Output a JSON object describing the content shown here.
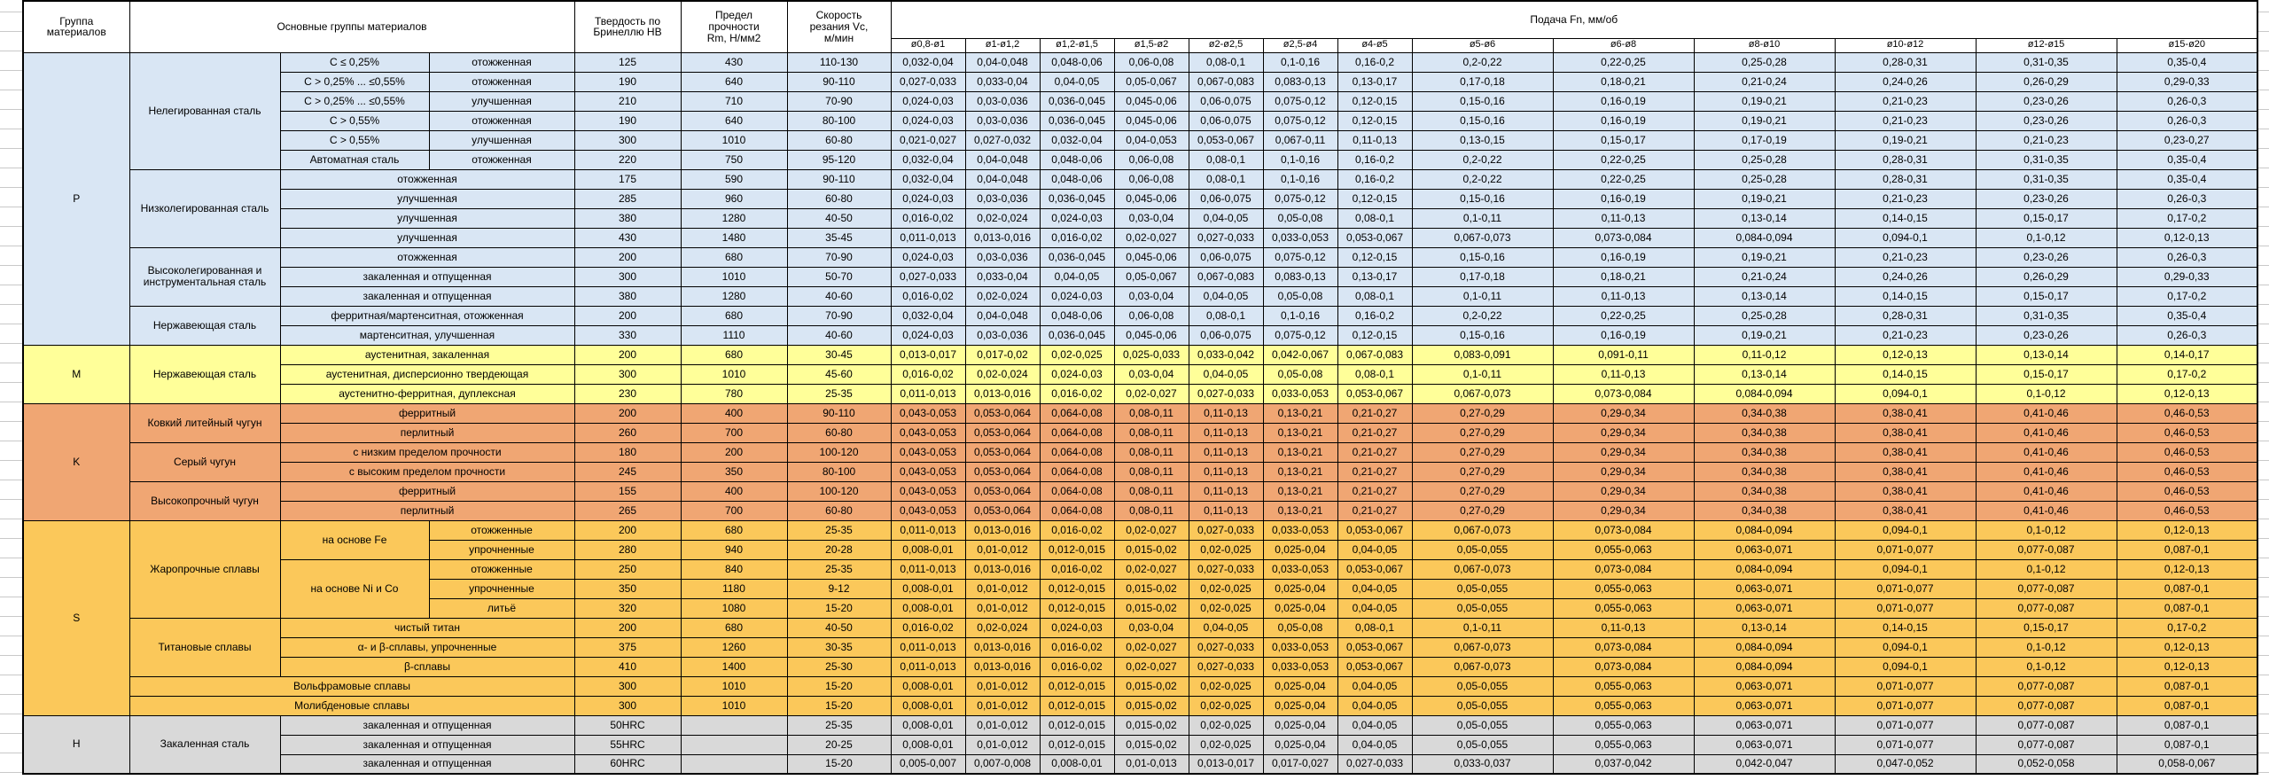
{
  "header": {
    "group": "Группа\nматериалов",
    "main_groups": "Основные группы материалов",
    "hardness": "Твердость по\nБринеллю HB",
    "strength": "Предел\nпрочности\nRm, Н/мм2",
    "speed": "Скорость\nрезания Vc,\nм/мин",
    "feed_title": "Подача Fn, мм/об",
    "feed_title_color": "#2e74b5",
    "feed_columns": [
      "ø0,8-ø1",
      "ø1-ø1,2",
      "ø1,2-ø1,5",
      "ø1,5-ø2",
      "ø2-ø2,5",
      "ø2,5-ø4",
      "ø4-ø5",
      "ø5-ø6",
      "ø6-ø8",
      "ø8-ø10",
      "ø10-ø12",
      "ø12-ø15",
      "ø15-ø20"
    ]
  },
  "feed_patterns": {
    "A": [
      "0,032-0,04",
      "0,04-0,048",
      "0,048-0,06",
      "0,06-0,08",
      "0,08-0,1",
      "0,1-0,16",
      "0,16-0,2",
      "0,2-0,22",
      "0,22-0,25",
      "0,25-0,28",
      "0,28-0,31",
      "0,31-0,35",
      "0,35-0,4"
    ],
    "B": [
      "0,027-0,033",
      "0,033-0,04",
      "0,04-0,05",
      "0,05-0,067",
      "0,067-0,083",
      "0,083-0,13",
      "0,13-0,17",
      "0,17-0,18",
      "0,18-0,21",
      "0,21-0,24",
      "0,24-0,26",
      "0,26-0,29",
      "0,29-0,33"
    ],
    "C": [
      "0,024-0,03",
      "0,03-0,036",
      "0,036-0,045",
      "0,045-0,06",
      "0,06-0,075",
      "0,075-0,12",
      "0,12-0,15",
      "0,15-0,16",
      "0,16-0,19",
      "0,19-0,21",
      "0,21-0,23",
      "0,23-0,26",
      "0,26-0,3"
    ],
    "D": [
      "0,021-0,027",
      "0,027-0,032",
      "0,032-0,04",
      "0,04-0,053",
      "0,053-0,067",
      "0,067-0,11",
      "0,11-0,13",
      "0,13-0,15",
      "0,15-0,17",
      "0,17-0,19",
      "0,19-0,21",
      "0,21-0,23",
      "0,23-0,27"
    ],
    "E": [
      "0,016-0,02",
      "0,02-0,024",
      "0,024-0,03",
      "0,03-0,04",
      "0,04-0,05",
      "0,05-0,08",
      "0,08-0,1",
      "0,1-0,11",
      "0,11-0,13",
      "0,13-0,14",
      "0,14-0,15",
      "0,15-0,17",
      "0,17-0,2"
    ],
    "F": [
      "0,011-0,013",
      "0,013-0,016",
      "0,016-0,02",
      "0,02-0,027",
      "0,027-0,033",
      "0,033-0,053",
      "0,053-0,067",
      "0,067-0,073",
      "0,073-0,084",
      "0,084-0,094",
      "0,094-0,1",
      "0,1-0,12",
      "0,12-0,13"
    ],
    "G": [
      "0,013-0,017",
      "0,017-0,02",
      "0,02-0,025",
      "0,025-0,033",
      "0,033-0,042",
      "0,042-0,067",
      "0,067-0,083",
      "0,083-0,091",
      "0,091-0,11",
      "0,11-0,12",
      "0,12-0,13",
      "0,13-0,14",
      "0,14-0,17"
    ],
    "H": [
      "0,043-0,053",
      "0,053-0,064",
      "0,064-0,08",
      "0,08-0,11",
      "0,11-0,13",
      "0,13-0,21",
      "0,21-0,27",
      "0,27-0,29",
      "0,29-0,34",
      "0,34-0,38",
      "0,38-0,41",
      "0,41-0,46",
      "0,46-0,53"
    ],
    "I": [
      "0,008-0,01",
      "0,01-0,012",
      "0,012-0,015",
      "0,015-0,02",
      "0,02-0,025",
      "0,025-0,04",
      "0,04-0,05",
      "0,05-0,055",
      "0,055-0,063",
      "0,063-0,071",
      "0,071-0,077",
      "0,077-0,087",
      "0,087-0,1"
    ],
    "J": [
      "0,005-0,007",
      "0,007-0,008",
      "0,008-0,01",
      "0,01-0,013",
      "0,013-0,017",
      "0,017-0,027",
      "0,027-0,033",
      "0,033-0,037",
      "0,037-0,042",
      "0,042-0,047",
      "0,047-0,052",
      "0,052-0,058",
      "0,058-0,067"
    ]
  },
  "sections": [
    {
      "group": "P",
      "color": "#d9e6f4",
      "families": [
        {
          "name": "Нелегированная сталь",
          "rows": [
            {
              "c": [
                {
                  "t": "C ≤ 0,25%"
                },
                {
                  "t": "отожженная"
                }
              ],
              "hb": "125",
              "rm": "430",
              "vc": "110-130",
              "fp": "A"
            },
            {
              "c": [
                {
                  "t": "C > 0,25% ... ≤0,55%"
                },
                {
                  "t": "отожженная"
                }
              ],
              "hb": "190",
              "rm": "640",
              "vc": "90-110",
              "fp": "B"
            },
            {
              "c": [
                {
                  "t": "C > 0,25% ... ≤0,55%"
                },
                {
                  "t": "улучшенная"
                }
              ],
              "hb": "210",
              "rm": "710",
              "vc": "70-90",
              "fp": "C"
            },
            {
              "c": [
                {
                  "t": "C > 0,55%"
                },
                {
                  "t": "отожженная"
                }
              ],
              "hb": "190",
              "rm": "640",
              "vc": "80-100",
              "fp": "C"
            },
            {
              "c": [
                {
                  "t": "C > 0,55%"
                },
                {
                  "t": "улучшенная"
                }
              ],
              "hb": "300",
              "rm": "1010",
              "vc": "60-80",
              "fp": "D"
            },
            {
              "c": [
                {
                  "t": "Автоматная сталь"
                },
                {
                  "t": "отожженная"
                }
              ],
              "hb": "220",
              "rm": "750",
              "vc": "95-120",
              "fp": "A"
            }
          ]
        },
        {
          "name": "Низколегированная сталь",
          "rows": [
            {
              "c": [
                {
                  "t": "отожженная",
                  "cs": 2
                }
              ],
              "hb": "175",
              "rm": "590",
              "vc": "90-110",
              "fp": "A"
            },
            {
              "c": [
                {
                  "t": "улучшенная",
                  "cs": 2
                }
              ],
              "hb": "285",
              "rm": "960",
              "vc": "60-80",
              "fp": "C"
            },
            {
              "c": [
                {
                  "t": "улучшенная",
                  "cs": 2
                }
              ],
              "hb": "380",
              "rm": "1280",
              "vc": "40-50",
              "fp": "E"
            },
            {
              "c": [
                {
                  "t": "улучшенная",
                  "cs": 2
                }
              ],
              "hb": "430",
              "rm": "1480",
              "vc": "35-45",
              "fp": "F"
            }
          ]
        },
        {
          "name": "Высоколегированная и инструментальная сталь",
          "rows": [
            {
              "c": [
                {
                  "t": "отожженная",
                  "cs": 2
                }
              ],
              "hb": "200",
              "rm": "680",
              "vc": "70-90",
              "fp": "C"
            },
            {
              "c": [
                {
                  "t": "закаленная и отпущенная",
                  "cs": 2
                }
              ],
              "hb": "300",
              "rm": "1010",
              "vc": "50-70",
              "fp": "B"
            },
            {
              "c": [
                {
                  "t": "закаленная и отпущенная",
                  "cs": 2
                }
              ],
              "hb": "380",
              "rm": "1280",
              "vc": "40-60",
              "fp": "E"
            }
          ]
        },
        {
          "name": "Нержавеющая сталь",
          "rows": [
            {
              "c": [
                {
                  "t": "ферритная/мартенситная, отожженная",
                  "cs": 2
                }
              ],
              "hb": "200",
              "rm": "680",
              "vc": "70-90",
              "fp": "A"
            },
            {
              "c": [
                {
                  "t": "мартенситная, улучшенная",
                  "cs": 2
                }
              ],
              "hb": "330",
              "rm": "1110",
              "vc": "40-60",
              "fp": "C"
            }
          ]
        }
      ]
    },
    {
      "group": "M",
      "color": "#ffff99",
      "families": [
        {
          "name": "Нержавеющая сталь",
          "rows": [
            {
              "c": [
                {
                  "t": "аустенитная, закаленная",
                  "cs": 2
                }
              ],
              "hb": "200",
              "rm": "680",
              "vc": "30-45",
              "fp": "G"
            },
            {
              "c": [
                {
                  "t": "аустенитная, дисперсионно твердеющая",
                  "cs": 2
                }
              ],
              "hb": "300",
              "rm": "1010",
              "vc": "45-60",
              "fp": "E"
            },
            {
              "c": [
                {
                  "t": "аустенитно-ферритная, дуплексная",
                  "cs": 2
                }
              ],
              "hb": "230",
              "rm": "780",
              "vc": "25-35",
              "fp": "F"
            }
          ]
        }
      ]
    },
    {
      "group": "K",
      "color": "#f0a673",
      "families": [
        {
          "name": "Ковкий литейный чугун",
          "rows": [
            {
              "c": [
                {
                  "t": "ферритный",
                  "cs": 2
                }
              ],
              "hb": "200",
              "rm": "400",
              "vc": "90-110",
              "fp": "H"
            },
            {
              "c": [
                {
                  "t": "перлитный",
                  "cs": 2
                }
              ],
              "hb": "260",
              "rm": "700",
              "vc": "60-80",
              "fp": "H"
            }
          ]
        },
        {
          "name": "Серый чугун",
          "rows": [
            {
              "c": [
                {
                  "t": "с низким пределом прочности",
                  "cs": 2
                }
              ],
              "hb": "180",
              "rm": "200",
              "vc": "100-120",
              "fp": "H"
            },
            {
              "c": [
                {
                  "t": "с высоким пределом прочности",
                  "cs": 2
                }
              ],
              "hb": "245",
              "rm": "350",
              "vc": "80-100",
              "fp": "H"
            }
          ]
        },
        {
          "name": "Высокопрочный чугун",
          "rows": [
            {
              "c": [
                {
                  "t": "ферритный",
                  "cs": 2
                }
              ],
              "hb": "155",
              "rm": "400",
              "vc": "100-120",
              "fp": "H"
            },
            {
              "c": [
                {
                  "t": "перлитный",
                  "cs": 2
                }
              ],
              "hb": "265",
              "rm": "700",
              "vc": "60-80",
              "fp": "H"
            }
          ]
        }
      ]
    },
    {
      "group": "S",
      "color": "#fbc85a",
      "families": [
        {
          "name": "Жаропрочные сплавы",
          "rows": [
            {
              "c": [
                {
                  "t": "на основе Fe",
                  "rs": 2
                },
                {
                  "t": "отожженные"
                }
              ],
              "hb": "200",
              "rm": "680",
              "vc": "25-35",
              "fp": "F"
            },
            {
              "c": [
                {
                  "t": "упрочненные"
                }
              ],
              "hb": "280",
              "rm": "940",
              "vc": "20-28",
              "fp": "I"
            },
            {
              "c": [
                {
                  "t": "на основе Ni и Co",
                  "rs": 3
                },
                {
                  "t": "отожженные"
                }
              ],
              "hb": "250",
              "rm": "840",
              "vc": "25-35",
              "fp": "F"
            },
            {
              "c": [
                {
                  "t": "упрочненные"
                }
              ],
              "hb": "350",
              "rm": "1180",
              "vc": "9-12",
              "fp": "I"
            },
            {
              "c": [
                {
                  "t": "литьё"
                }
              ],
              "hb": "320",
              "rm": "1080",
              "vc": "15-20",
              "fp": "I"
            }
          ]
        },
        {
          "name": "Титановые сплавы",
          "rows": [
            {
              "c": [
                {
                  "t": "чистый титан",
                  "cs": 2
                }
              ],
              "hb": "200",
              "rm": "680",
              "vc": "40-50",
              "fp": "E"
            },
            {
              "c": [
                {
                  "t": "α- и β-сплавы, упрочненные",
                  "cs": 2
                }
              ],
              "hb": "375",
              "rm": "1260",
              "vc": "30-35",
              "fp": "F"
            },
            {
              "c": [
                {
                  "t": "β-сплавы",
                  "cs": 2
                }
              ],
              "hb": "410",
              "rm": "1400",
              "vc": "25-30",
              "fp": "F"
            }
          ]
        },
        {
          "name": "Вольфрамовые сплавы",
          "full": true,
          "rows": [
            {
              "c": [],
              "hb": "300",
              "rm": "1010",
              "vc": "15-20",
              "fp": "I"
            }
          ]
        },
        {
          "name": "Молибденовые сплавы",
          "full": true,
          "rows": [
            {
              "c": [],
              "hb": "300",
              "rm": "1010",
              "vc": "15-20",
              "fp": "I"
            }
          ]
        }
      ]
    },
    {
      "group": "H",
      "color": "#d9d9d9",
      "families": [
        {
          "name": "Закаленная сталь",
          "rows": [
            {
              "c": [
                {
                  "t": "закаленная и отпущенная",
                  "cs": 2
                }
              ],
              "hb": "50HRC",
              "rm": "",
              "vc": "25-35",
              "fp": "I"
            },
            {
              "c": [
                {
                  "t": "закаленная и отпущенная",
                  "cs": 2
                }
              ],
              "hb": "55HRC",
              "rm": "",
              "vc": "20-25",
              "fp": "I"
            },
            {
              "c": [
                {
                  "t": "закаленная и отпущенная",
                  "cs": 2
                }
              ],
              "hb": "60HRC",
              "rm": "",
              "vc": "15-20",
              "fp": "J"
            }
          ]
        }
      ]
    }
  ]
}
